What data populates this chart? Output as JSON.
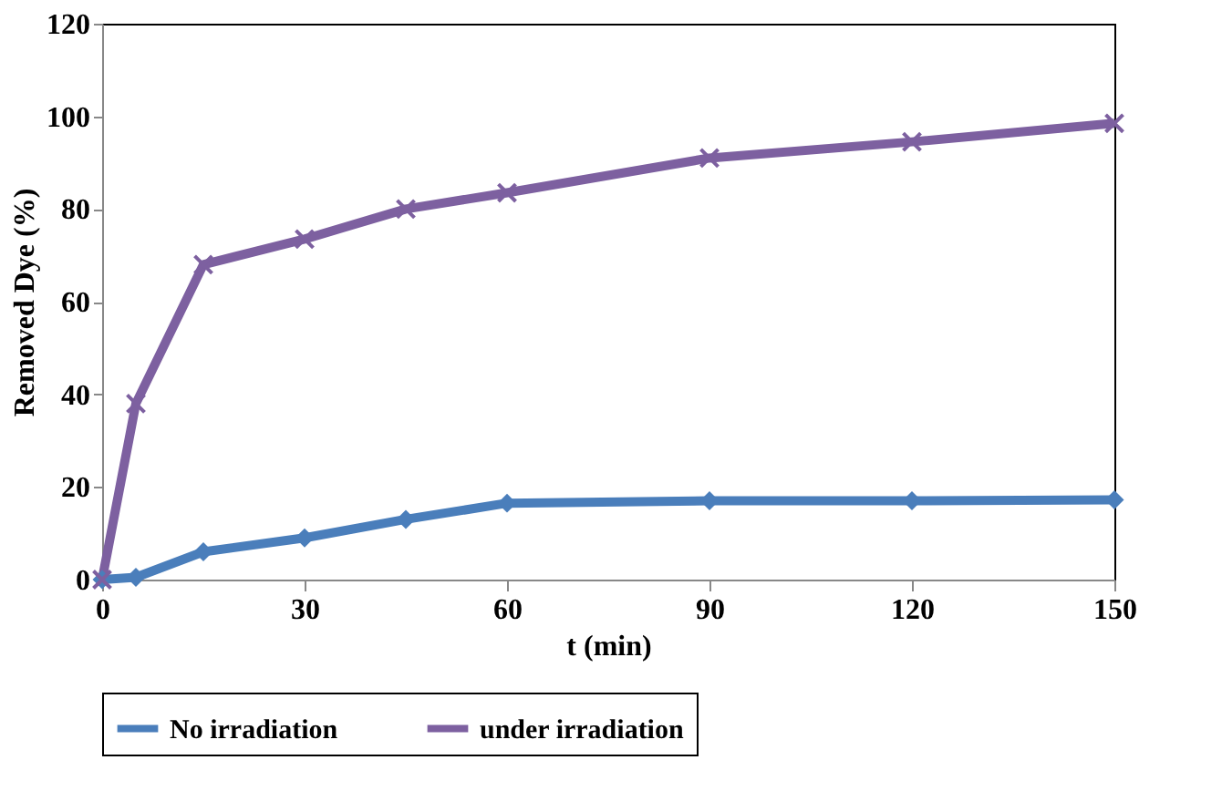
{
  "chart_data": {
    "type": "line",
    "xlabel": "t (min)",
    "ylabel": "Removed Dye (%)",
    "x": [
      0,
      5,
      15,
      30,
      45,
      60,
      90,
      120,
      150
    ],
    "series": [
      {
        "name": "No irradiation",
        "color": "#4a7ebb",
        "marker": "diamond",
        "values": [
          0,
          0.5,
          6,
          9,
          13,
          16.5,
          17,
          17,
          17.2
        ]
      },
      {
        "name": "under irradiation",
        "color": "#7d60a0",
        "marker": "cross",
        "values": [
          0,
          38,
          68,
          73.5,
          80,
          83.5,
          91,
          94.5,
          98.5
        ]
      }
    ],
    "xlim": [
      0,
      150
    ],
    "xticks": [
      0,
      30,
      60,
      90,
      120,
      150
    ],
    "ylim": [
      0,
      120
    ],
    "yticks": [
      0,
      20,
      40,
      60,
      80,
      100,
      120
    ],
    "grid": false,
    "legend": "bottom",
    "line_style": "solid"
  }
}
